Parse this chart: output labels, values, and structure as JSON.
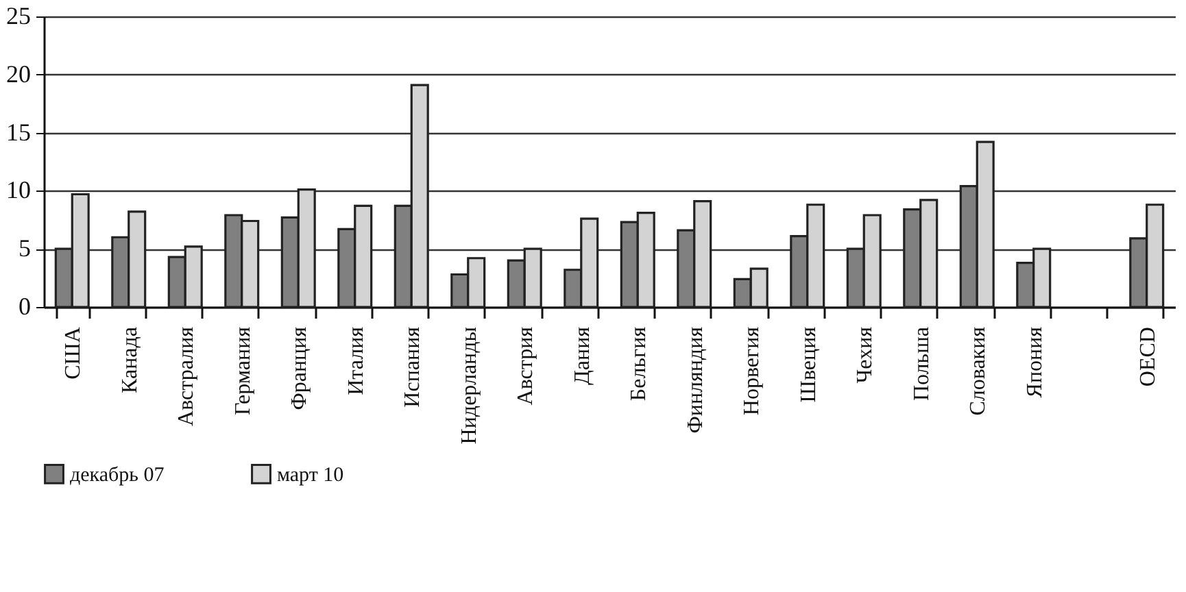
{
  "chart_data": {
    "type": "bar",
    "categories": [
      "США",
      "Канада",
      "Австралия",
      "Германия",
      "Франция",
      "Италия",
      "Испания",
      "Нидерланды",
      "Австрия",
      "Дания",
      "Бельгия",
      "Финляндия",
      "Норвегия",
      "Швеция",
      "Чехия",
      "Польша",
      "Словакия",
      "Япония",
      null,
      "OECD"
    ],
    "series": [
      {
        "name": "декабрь 07",
        "color": "#808080",
        "values": [
          5.0,
          6.0,
          4.3,
          7.9,
          7.7,
          6.7,
          8.7,
          2.8,
          4.0,
          3.2,
          7.3,
          6.6,
          2.4,
          6.1,
          5.0,
          8.4,
          10.4,
          3.8,
          null,
          5.9
        ]
      },
      {
        "name": "март 10",
        "color": "#d3d3d3",
        "values": [
          9.7,
          8.2,
          5.2,
          7.4,
          10.1,
          8.7,
          19.1,
          4.2,
          5.0,
          7.6,
          8.1,
          9.1,
          3.3,
          8.8,
          7.9,
          9.2,
          14.2,
          5.0,
          null,
          8.8
        ]
      }
    ],
    "ylim": [
      0,
      25
    ],
    "yticks": [
      0,
      5,
      10,
      15,
      20,
      25
    ],
    "grid": "y",
    "legend": "bottom"
  }
}
